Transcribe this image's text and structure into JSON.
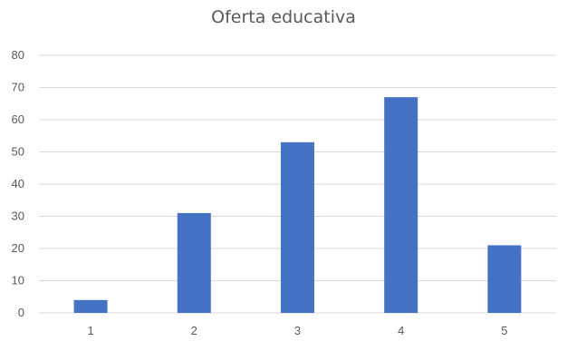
{
  "chart_data": {
    "type": "bar",
    "title": "Oferta educativa",
    "categories": [
      "1",
      "2",
      "3",
      "4",
      "5"
    ],
    "values": [
      4,
      31,
      53,
      67,
      21
    ],
    "xlabel": "",
    "ylabel": "",
    "ylim": [
      0,
      80
    ],
    "yticks": [
      0,
      10,
      20,
      30,
      40,
      50,
      60,
      70,
      80
    ],
    "grid": true,
    "legend": "none",
    "colors": {
      "bar": "#4472C4",
      "grid": "#D9D9D9",
      "text": "#595959"
    }
  }
}
